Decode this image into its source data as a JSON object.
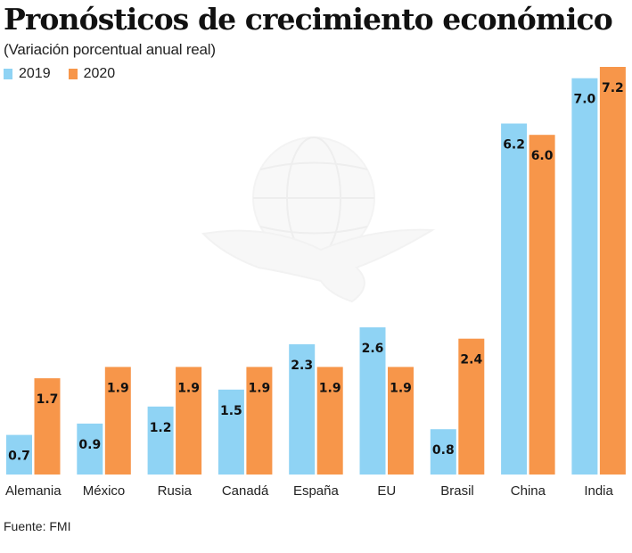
{
  "chart_data": {
    "type": "bar",
    "title": "Pronósticos de crecimiento económico",
    "subtitle": "(Variación porcentual anual real)",
    "xlabel": "",
    "ylabel": "",
    "ylim": [
      0,
      7.2
    ],
    "grid": false,
    "legend_position": "top-left",
    "categories": [
      "Alemania",
      "México",
      "Rusia",
      "Canadá",
      "España",
      "EU",
      "Brasil",
      "China",
      "India"
    ],
    "series": [
      {
        "name": "2019",
        "color": "#8fd3f4",
        "values": [
          0.7,
          0.9,
          1.2,
          1.5,
          2.3,
          2.6,
          0.8,
          6.2,
          7.0
        ],
        "labels": [
          "0.7",
          "0.9",
          "1.2",
          "1.5",
          "2.3",
          "2.6",
          "0.8",
          "6.2",
          "7.0"
        ]
      },
      {
        "name": "2020",
        "color": "#f7964a",
        "values": [
          1.7,
          1.9,
          1.9,
          1.9,
          1.9,
          1.9,
          2.4,
          6.0,
          7.2
        ],
        "labels": [
          "1.7",
          "1.9",
          "1.9",
          "1.9",
          "1.9",
          "1.9",
          "2.4",
          "6.0",
          "7.2"
        ]
      }
    ],
    "source": "Fuente: FMI"
  },
  "watermark": "globe-eagle-logo"
}
